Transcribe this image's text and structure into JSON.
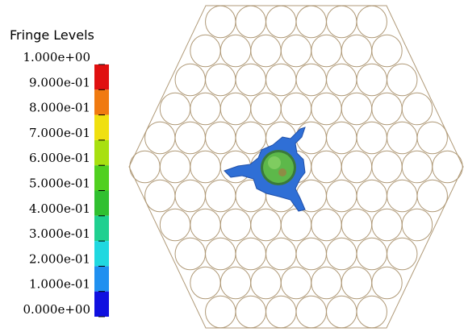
{
  "legend": {
    "title": "Fringe Levels",
    "levels": [
      "1.000e+00",
      "9.000e-01",
      "8.000e-01",
      "7.000e-01",
      "6.000e-01",
      "5.000e-01",
      "4.000e-01",
      "3.000e-01",
      "2.000e-01",
      "1.000e-01",
      "0.000e+00"
    ]
  }
}
